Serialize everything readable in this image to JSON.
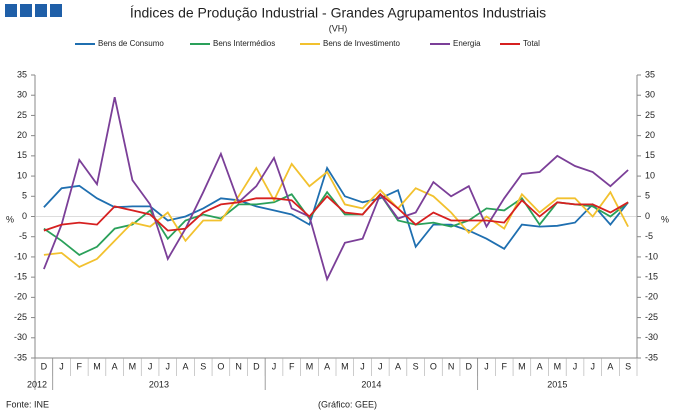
{
  "chart_data": {
    "type": "line",
    "title": "Índices de Produção Industrial - Grandes Agrupamentos Industriais",
    "subtitle": "(VH)",
    "y_label": "%",
    "y2_label": "%",
    "source": "Fonte: INE",
    "credit": "(Gráfico: GEE)",
    "categories": [
      "D",
      "J",
      "F",
      "M",
      "A",
      "M",
      "J",
      "J",
      "A",
      "S",
      "O",
      "N",
      "D",
      "J",
      "F",
      "M",
      "A",
      "M",
      "J",
      "J",
      "A",
      "S",
      "O",
      "N",
      "D",
      "J",
      "F",
      "M",
      "A",
      "M",
      "J",
      "J",
      "A",
      "S"
    ],
    "years": [
      "2012",
      "2013",
      "2014",
      "2015"
    ],
    "series": [
      {
        "name": "Bens de Consumo",
        "color": "#1f6fb0",
        "values": [
          2.3,
          7,
          7.6,
          4.5,
          2.3,
          2.5,
          2.5,
          -1,
          0,
          2,
          4.5,
          4,
          2.5,
          1.5,
          0.5,
          -2,
          12,
          5,
          3.5,
          4.5,
          6.5,
          -7.5,
          -2,
          -2,
          -3.5,
          -5.5,
          -8,
          -2,
          -2.5,
          -2.3,
          -1.5,
          3,
          -2,
          3.5
        ]
      },
      {
        "name": "Bens Intermédios",
        "color": "#2aa05a",
        "values": [
          -3,
          -6,
          -9.5,
          -7.5,
          -3,
          -2,
          1.5,
          -5.5,
          -1,
          0.5,
          -0.5,
          3,
          3,
          3.5,
          5.5,
          -0.5,
          6,
          0.5,
          0.5,
          5.5,
          -1,
          -2,
          -1.5,
          -2.5,
          -1,
          2,
          1.5,
          4.5,
          -2,
          3.5,
          3,
          2.5,
          0,
          3.5
        ]
      },
      {
        "name": "Bens de Investimento",
        "color": "#f2c12e",
        "values": [
          -9.5,
          -9,
          -12.5,
          -10.5,
          -6,
          -1.5,
          -2.5,
          1,
          -6,
          -1,
          -1,
          5,
          12,
          4,
          13,
          7.5,
          11,
          3,
          2,
          6.5,
          2,
          7,
          5,
          1,
          -4,
          0,
          -3,
          5.5,
          1,
          4.5,
          4.5,
          0,
          6,
          -2.5
        ]
      },
      {
        "name": "Energia",
        "color": "#7b3f98",
        "values": [
          -13,
          -2,
          14,
          8,
          29.5,
          9,
          3,
          -10.5,
          -3,
          6,
          15.5,
          3.5,
          7.5,
          14.5,
          2,
          0,
          -15.5,
          -6.5,
          -5.5,
          5.5,
          -0.5,
          1,
          8.5,
          5,
          7.5,
          -2.5,
          4.5,
          10.5,
          11,
          15,
          12.5,
          11,
          7.5,
          11.5
        ]
      },
      {
        "name": "Total",
        "color": "#d62020",
        "values": [
          -3.5,
          -2,
          -1.5,
          -2,
          2.5,
          1.5,
          0.5,
          -3.5,
          -3,
          1,
          3,
          3.5,
          4.5,
          4.5,
          4,
          0,
          5,
          1,
          0.5,
          5.5,
          2,
          -2,
          1,
          -1,
          -1,
          -1,
          -1.5,
          4,
          0,
          3.5,
          3,
          3,
          1,
          3.5
        ]
      }
    ],
    "ylim": [
      -35,
      35
    ],
    "yticks": [
      -35,
      -30,
      -25,
      -20,
      -15,
      -10,
      -5,
      0,
      5,
      10,
      15,
      20,
      25,
      30,
      35
    ],
    "y2lim": [
      -35,
      35
    ],
    "y2ticks": [
      -35,
      -30,
      -25,
      -20,
      -15,
      -10,
      -5,
      0,
      5,
      10,
      15,
      20,
      25,
      30,
      35
    ],
    "grid": false
  }
}
